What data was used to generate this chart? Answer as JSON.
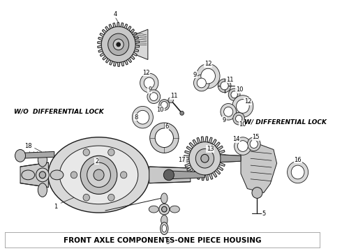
{
  "title": "FRONT AXLE COMPONENTS-ONE PIECE HOUSING",
  "label_wo_diff": "W/O  DIFFERENTIAL LOCK",
  "label_w_diff": "W/ DIFFERENTIAL LOCK",
  "bg_color": "#ffffff",
  "line_color": "#1a1a1a",
  "text_color": "#000000",
  "title_fontsize": 7.5,
  "label_fontsize": 6.5,
  "num_fontsize": 6,
  "figsize": [
    4.9,
    3.6
  ],
  "dpi": 100
}
